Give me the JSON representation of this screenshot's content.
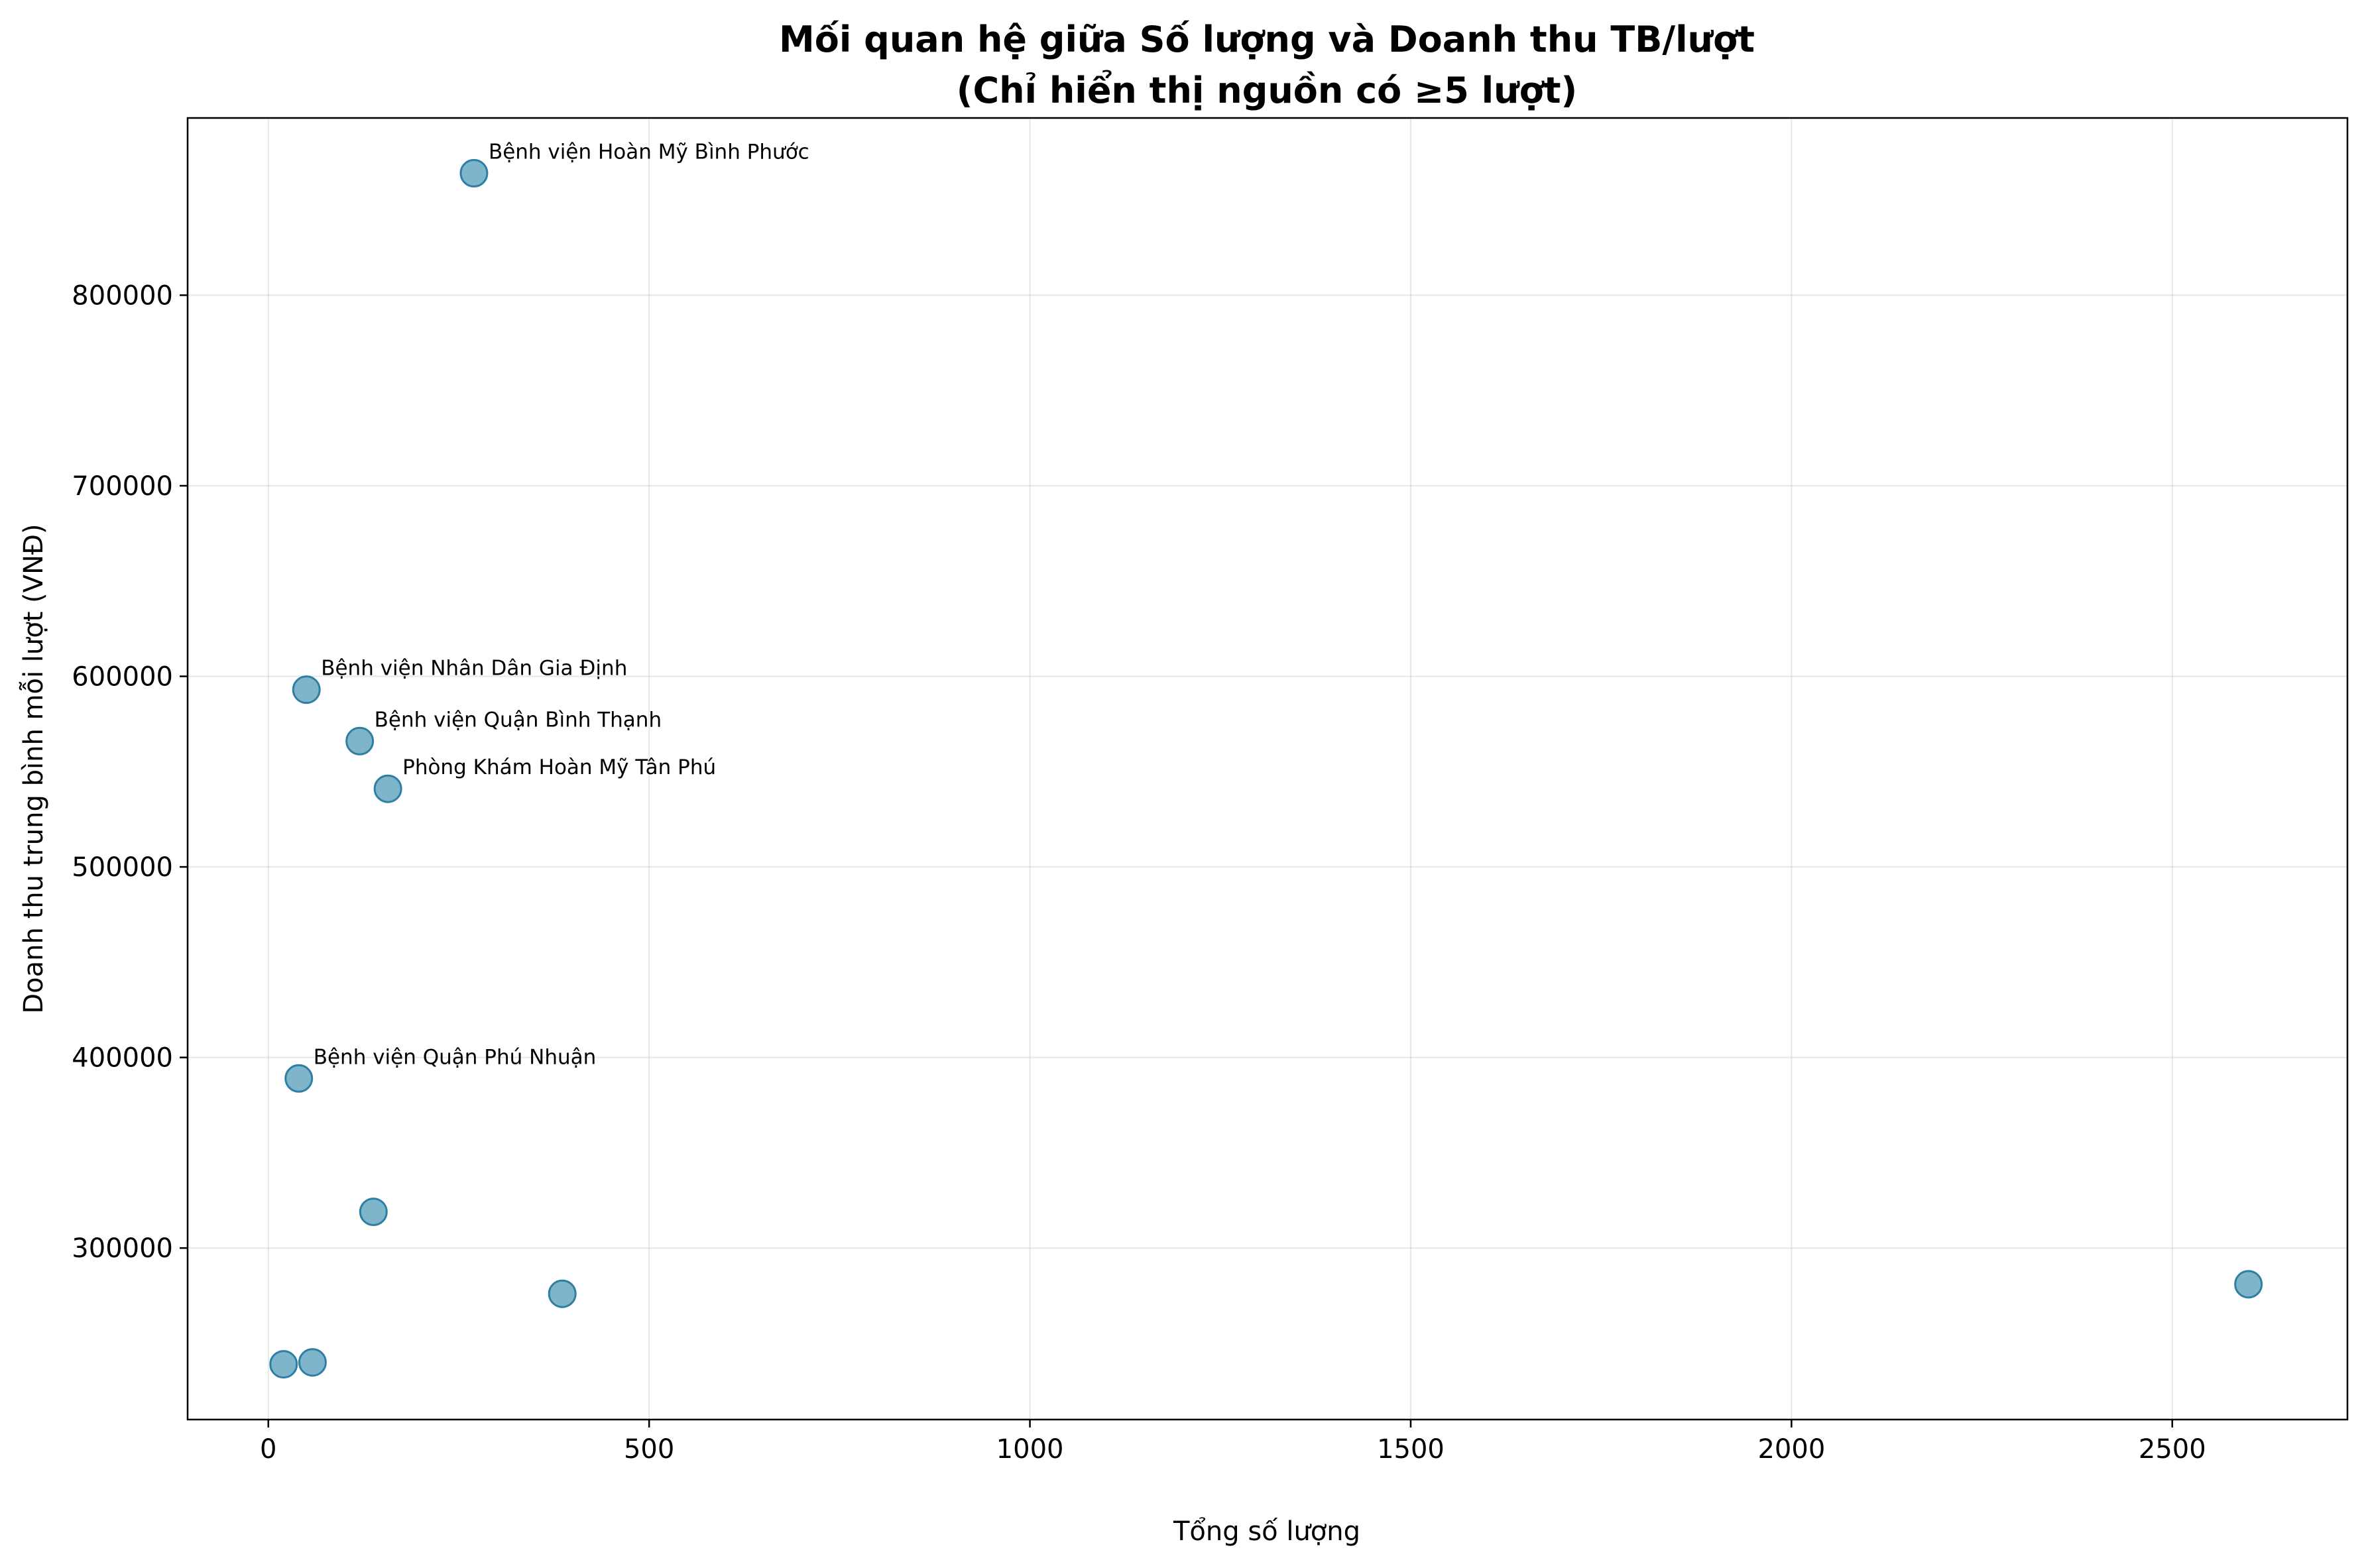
{
  "chart_data": {
    "type": "scatter",
    "title": "Mối quan hệ giữa Số lượng và Doanh thu TB/lượt",
    "subtitle": "(Chỉ hiển thị nguồn có ≥5 lượt)",
    "xlabel": "Tổng số lượng",
    "ylabel": "Doanh thu trung bình mỗi lượt (VNĐ)",
    "xlim": [
      -106,
      2730
    ],
    "ylim": [
      210000,
      893000
    ],
    "xticks": [
      0,
      500,
      1000,
      1500,
      2000,
      2500
    ],
    "yticks": [
      300000,
      400000,
      500000,
      600000,
      700000,
      800000
    ],
    "grid": true,
    "marker_color": "#4895b5",
    "edge_color": "#2e7fa3",
    "points": [
      {
        "x": 270,
        "y": 864000,
        "label": "Bệnh viện Hoàn Mỹ Bình Phước"
      },
      {
        "x": 50,
        "y": 593000,
        "label": "Bệnh viện Nhân Dân Gia Định"
      },
      {
        "x": 120,
        "y": 566000,
        "label": "Bệnh viện Quận Bình Thạnh"
      },
      {
        "x": 157,
        "y": 541000,
        "label": "Phòng Khám Hoàn Mỹ Tân Phú"
      },
      {
        "x": 40,
        "y": 389000,
        "label": "Bệnh viện Quận Phú Nhuận"
      },
      {
        "x": 138,
        "y": 319000,
        "label": ""
      },
      {
        "x": 386,
        "y": 276000,
        "label": ""
      },
      {
        "x": 2600,
        "y": 281000,
        "label": ""
      },
      {
        "x": 20,
        "y": 239000,
        "label": ""
      },
      {
        "x": 58,
        "y": 240000,
        "label": ""
      }
    ]
  }
}
